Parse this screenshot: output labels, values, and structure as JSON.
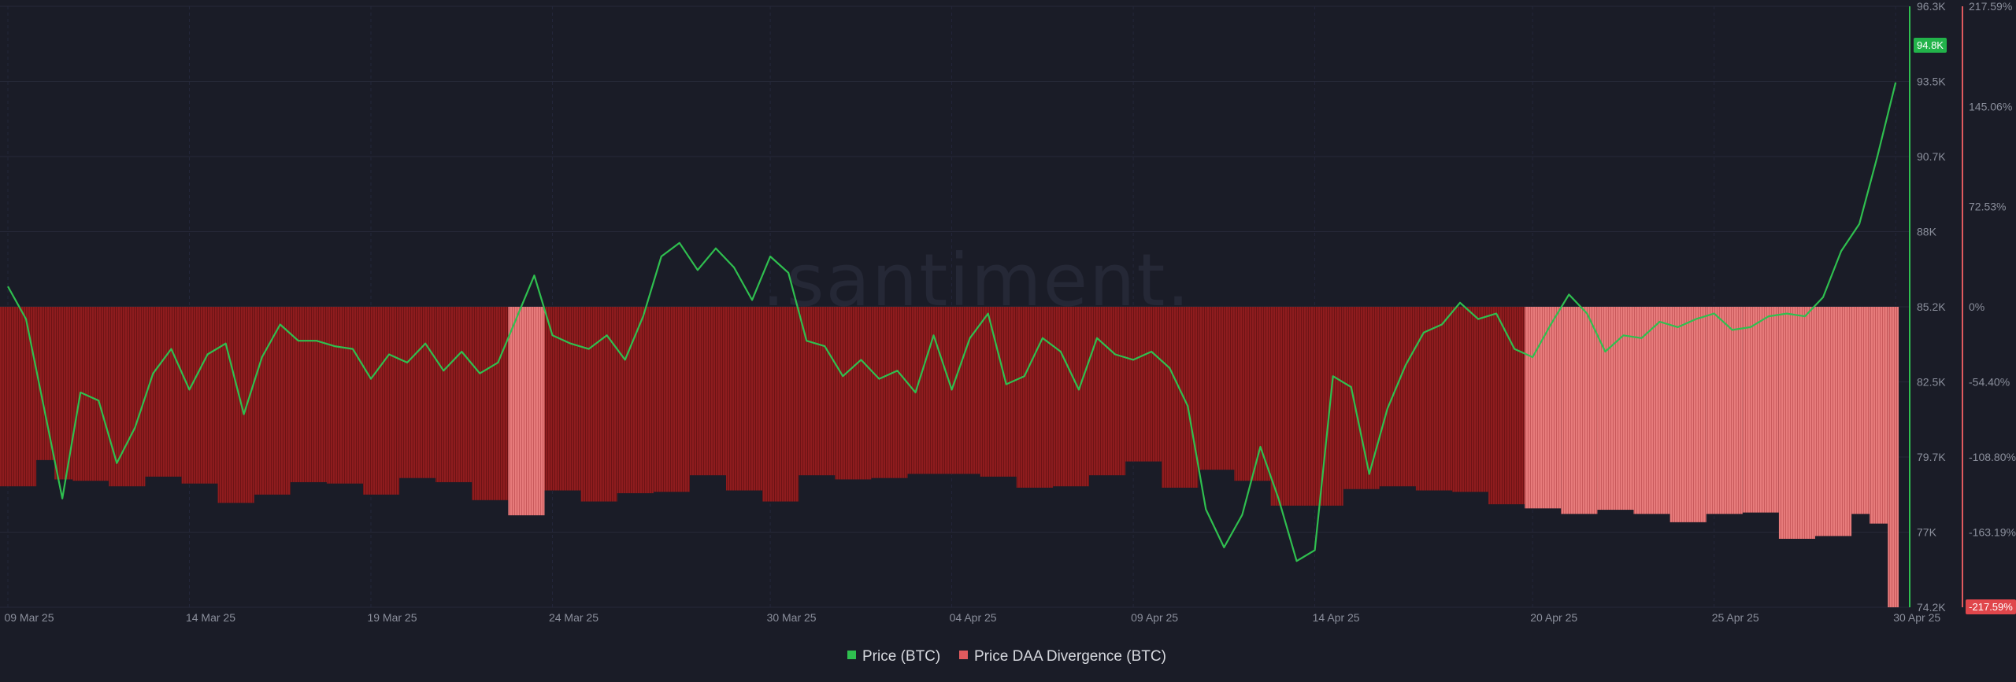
{
  "watermark": ".santiment.",
  "colors": {
    "background": "#1a1c27",
    "price": "#2fbf4f",
    "divergence_dark": "#8e1c1e",
    "divergence_light": "#e77b7b",
    "price_badge": "#22b34a",
    "divergence_badge": "#e0464b"
  },
  "legend": [
    {
      "label": "Price (BTC)",
      "color": "#2fbf4f"
    },
    {
      "label": "Price DAA Divergence (BTC)",
      "color": "#e05a5e"
    }
  ],
  "chart_data": {
    "type": "line",
    "x_tick_labels": [
      "09 Mar 25",
      "14 Mar 25",
      "19 Mar 25",
      "24 Mar 25",
      "30 Mar 25",
      "04 Apr 25",
      "09 Apr 25",
      "14 Apr 25",
      "20 Apr 25",
      "25 Apr 25",
      "30 Apr 25"
    ],
    "x_range": [
      "2025-03-09",
      "2025-04-30"
    ],
    "y_left_label": "",
    "y_price_ticks": [
      "96.3K",
      "93.5K",
      "90.7K",
      "88K",
      "85.2K",
      "82.5K",
      "79.7K",
      "77K",
      "74.2K"
    ],
    "y_price_range": [
      74200,
      96300
    ],
    "y_div_ticks": [
      "217.59%",
      "145.06%",
      "72.53%",
      "0%",
      "-54.40%",
      "-108.80%",
      "-163.19%",
      "-217.59%"
    ],
    "y_div_range": [
      -217.59,
      217.59
    ],
    "price_badge": "94.8K",
    "divergence_badge": "-217.59%",
    "series": [
      {
        "name": "Price (BTC)",
        "type": "line",
        "days": [
          0,
          0.5,
          1,
          1.5,
          2,
          2.5,
          3,
          3.5,
          4,
          4.5,
          5,
          5.5,
          6,
          6.5,
          7,
          7.5,
          8,
          8.5,
          9,
          9.5,
          10,
          10.5,
          11,
          11.5,
          12,
          12.5,
          13,
          13.5,
          14,
          14.5,
          15,
          15.5,
          16,
          16.5,
          17,
          17.5,
          18,
          18.5,
          19,
          19.5,
          20,
          20.5,
          21,
          21.5,
          22,
          22.5,
          23,
          23.5,
          24,
          24.5,
          25,
          25.5,
          26,
          26.5,
          27,
          27.5,
          28,
          28.5,
          29,
          29.5,
          30,
          30.5,
          31,
          31.5,
          32,
          32.5,
          33,
          33.5,
          34,
          34.5,
          35,
          35.5,
          36,
          36.5,
          37,
          37.5,
          38,
          38.5,
          39,
          39.5,
          40,
          40.5,
          41,
          41.5,
          42,
          42.5,
          43,
          43.5,
          44,
          44.5,
          45,
          45.5,
          46,
          46.5,
          47,
          47.5,
          48,
          48.5,
          49,
          49.5,
          50,
          50.5,
          51,
          51.5,
          52
        ],
        "values": [
          86000,
          84800,
          81500,
          78200,
          82100,
          81800,
          79500,
          80800,
          82800,
          83700,
          82200,
          83500,
          83900,
          81300,
          83400,
          84600,
          84000,
          84000,
          83800,
          83700,
          82600,
          83500,
          83200,
          83900,
          82900,
          83600,
          82800,
          83200,
          84800,
          86400,
          84200,
          83900,
          83700,
          84200,
          83300,
          84900,
          87100,
          87600,
          86600,
          87400,
          86700,
          85500,
          87100,
          86500,
          84000,
          83800,
          82700,
          83300,
          82600,
          82900,
          82100,
          84200,
          82200,
          84100,
          85000,
          82400,
          82700,
          84100,
          83600,
          82200,
          84100,
          83500,
          83300,
          83600,
          83000,
          81600,
          77800,
          76400,
          77600,
          80100,
          78200,
          75900,
          76300,
          82700,
          82300,
          79100,
          81500,
          83100,
          84300,
          84600,
          85400,
          84800,
          85000,
          83700,
          83400,
          84600,
          85700,
          85000,
          83600,
          84200,
          84100,
          84700,
          84500,
          84800,
          85000,
          84400,
          84500,
          84900,
          85000,
          84900,
          85600,
          87300,
          88300,
          90800,
          93500
        ]
      },
      {
        "name": "Price DAA Divergence (BTC)",
        "type": "bar",
        "segments": [
          {
            "days": [
              0,
              1
            ],
            "value": -130
          },
          {
            "days": [
              1,
              1.5
            ],
            "value": -111
          },
          {
            "days": [
              1.5,
              2
            ],
            "value": -125
          },
          {
            "days": [
              2,
              3
            ],
            "value": -126
          },
          {
            "days": [
              3,
              4
            ],
            "value": -130
          },
          {
            "days": [
              4,
              5
            ],
            "value": -123
          },
          {
            "days": [
              5,
              6
            ],
            "value": -128
          },
          {
            "days": [
              6,
              7
            ],
            "value": -142
          },
          {
            "days": [
              7,
              8
            ],
            "value": -136
          },
          {
            "days": [
              8,
              9
            ],
            "value": -127
          },
          {
            "days": [
              9,
              10
            ],
            "value": -128
          },
          {
            "days": [
              10,
              11
            ],
            "value": -136
          },
          {
            "days": [
              11,
              12
            ],
            "value": -124
          },
          {
            "days": [
              12,
              13
            ],
            "value": -127
          },
          {
            "days": [
              13,
              14
            ],
            "value": -140
          },
          {
            "days": [
              14,
              15
            ],
            "value": -151
          },
          {
            "days": [
              15,
              16
            ],
            "value": -133
          },
          {
            "days": [
              16,
              17
            ],
            "value": -141
          },
          {
            "days": [
              17,
              18
            ],
            "value": -135
          },
          {
            "days": [
              18,
              19
            ],
            "value": -134
          },
          {
            "days": [
              19,
              20
            ],
            "value": -122
          },
          {
            "days": [
              20,
              21
            ],
            "value": -133
          },
          {
            "days": [
              21,
              22
            ],
            "value": -141
          },
          {
            "days": [
              22,
              23
            ],
            "value": -122
          },
          {
            "days": [
              23,
              24
            ],
            "value": -125
          },
          {
            "days": [
              24,
              25
            ],
            "value": -124
          },
          {
            "days": [
              25,
              26
            ],
            "value": -121
          },
          {
            "days": [
              26,
              27
            ],
            "value": -121
          },
          {
            "days": [
              27,
              28
            ],
            "value": -123
          },
          {
            "days": [
              28,
              29
            ],
            "value": -131
          },
          {
            "days": [
              29,
              30
            ],
            "value": -130
          },
          {
            "days": [
              30,
              31
            ],
            "value": -122
          },
          {
            "days": [
              31,
              32
            ],
            "value": -112
          },
          {
            "days": [
              32,
              33
            ],
            "value": -131
          },
          {
            "days": [
              33,
              34
            ],
            "value": -118
          },
          {
            "days": [
              34,
              35
            ],
            "value": -126
          },
          {
            "days": [
              35,
              36
            ],
            "value": -144
          },
          {
            "days": [
              36,
              37
            ],
            "value": -144
          },
          {
            "days": [
              37,
              38
            ],
            "value": -132
          },
          {
            "days": [
              38,
              39
            ],
            "value": -130
          },
          {
            "days": [
              39,
              40
            ],
            "value": -133
          },
          {
            "days": [
              40,
              41
            ],
            "value": -134
          },
          {
            "days": [
              41,
              42
            ],
            "value": -143
          },
          {
            "days": [
              42,
              43
            ],
            "value": -146
          },
          {
            "days": [
              43,
              44
            ],
            "value": -150
          },
          {
            "days": [
              44,
              45
            ],
            "value": -147
          },
          {
            "days": [
              45,
              46
            ],
            "value": -150
          },
          {
            "days": [
              46,
              47
            ],
            "value": -156
          },
          {
            "days": [
              47,
              48
            ],
            "value": -150
          },
          {
            "days": [
              48,
              49
            ],
            "value": -149
          },
          {
            "days": [
              49,
              50
            ],
            "value": -168
          },
          {
            "days": [
              50,
              51
            ],
            "value": -166
          },
          {
            "days": [
              51,
              51.5
            ],
            "value": -150
          },
          {
            "days": [
              51.5,
              52
            ],
            "value": -157
          },
          {
            "days": [
              52,
              52.3
            ],
            "value": -217.59
          }
        ]
      }
    ],
    "grid": true,
    "legend_position": "bottom-center"
  }
}
